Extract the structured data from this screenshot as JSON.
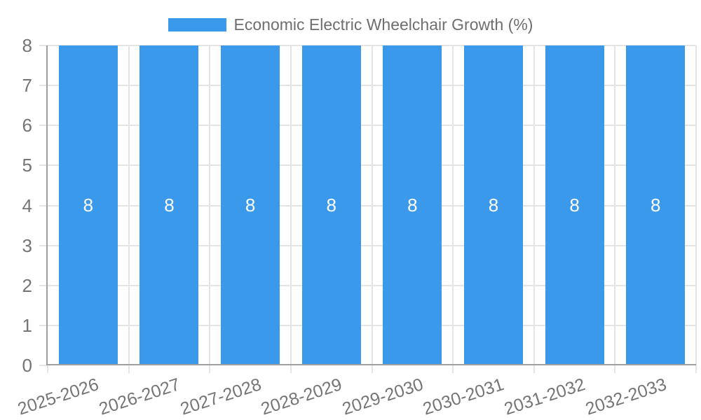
{
  "colors": {
    "bar": "#3b99ec",
    "grid": "#e4e4e4",
    "axis": "#9f9f9f",
    "text": "#757575",
    "legend_text": "#6e6e6e",
    "bar_label": "#ffffff",
    "background": "#ffffff"
  },
  "legend": {
    "position": "top",
    "items": [
      {
        "label": "Economic Electric Wheelchair Growth (%)",
        "color": "#3b99ec"
      }
    ]
  },
  "chart_data": {
    "type": "bar",
    "title": "",
    "xlabel": "",
    "ylabel": "",
    "categories": [
      "2025-2026",
      "2026-2027",
      "2027-2028",
      "2028-2029",
      "2029-2030",
      "2030-2031",
      "2031-2032",
      "2032-2033"
    ],
    "series": [
      {
        "name": "Economic Electric Wheelchair Growth (%)",
        "values": [
          8,
          8,
          8,
          8,
          8,
          8,
          8,
          8
        ]
      }
    ],
    "bar_value_labels": [
      "8",
      "8",
      "8",
      "8",
      "8",
      "8",
      "8",
      "8"
    ],
    "ylim": [
      0,
      8
    ],
    "yticks": [
      0,
      1,
      2,
      3,
      4,
      5,
      6,
      7,
      8
    ],
    "grid": true,
    "legend_position": "top",
    "x_tick_label_rotation_deg": -18
  }
}
